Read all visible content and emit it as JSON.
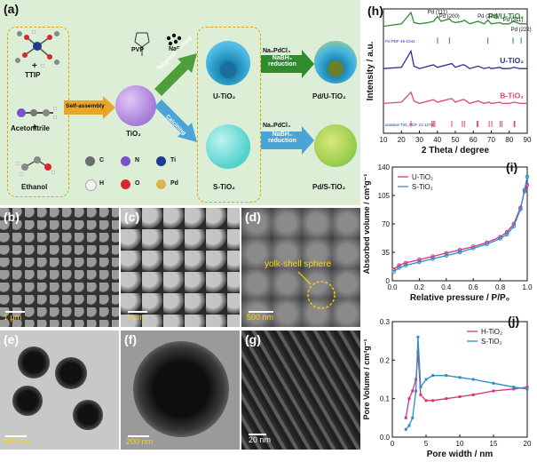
{
  "panels": {
    "a": "(a)",
    "b": "(b)",
    "c": "(c)",
    "d": "(d)",
    "e": "(e)",
    "f": "(f)",
    "g": "(g)",
    "h": "(h)",
    "i": "(i)",
    "j": "(j)"
  },
  "scheme": {
    "precursors": [
      "TTIP",
      "Acetonitrile",
      "Ethanol"
    ],
    "self_assembly": "Self-assembly",
    "tio2": "TiO₂",
    "pvp": "PVP",
    "naf": "NaF",
    "targeted_etching": "Targeted etching",
    "calcining": "Calcining",
    "u_tio2": "U-TiO₂",
    "s_tio2": "S-TiO₂",
    "na2pdcl4": "Na₂PdCl₄",
    "nabh4_reduction": [
      "NaBH₄",
      "reduction"
    ],
    "pd_u_tio2": "Pd/U-TiO₂",
    "pd_s_tio2": "Pd/S-TiO₂",
    "legend": [
      {
        "label": "C",
        "color": "#6e6e6e"
      },
      {
        "label": "N",
        "color": "#7a52c7"
      },
      {
        "label": "Ti",
        "color": "#1e3c8c"
      },
      {
        "label": "H",
        "color": "#f2f2f2"
      },
      {
        "label": "O",
        "color": "#d8282d"
      },
      {
        "label": "Pd",
        "color": "#d8b64a"
      }
    ]
  },
  "micrographs": {
    "b_scale": "1 μm",
    "c_scale": "1 μm",
    "d_scale": "500 nm",
    "d_annotation": "yolk-shell sphere",
    "e_scale": "500 nm",
    "f_scale": "200 nm",
    "g_scale": "20 nm"
  },
  "chart_data": [
    {
      "id": "h",
      "type": "line",
      "xlabel": "2 Theta / degree",
      "ylabel": "Intensity / a.u.",
      "xlim": [
        10,
        90
      ],
      "xticks": [
        10,
        20,
        30,
        40,
        50,
        60,
        70,
        80,
        90
      ],
      "series": [
        {
          "name": "Pd/U-TiO₂",
          "color": "#2e8b2e",
          "x": [
            10,
            20,
            25.3,
            27,
            30,
            35,
            37.8,
            40.1,
            42,
            46.7,
            48,
            50,
            54,
            55,
            58,
            62.7,
            66,
            68.1,
            70,
            75,
            76,
            80,
            82.1,
            86,
            90
          ],
          "y": [
            0.86,
            0.88,
            0.97,
            0.89,
            0.88,
            0.89,
            0.9,
            0.94,
            0.9,
            0.92,
            0.9,
            0.89,
            0.9,
            0.91,
            0.88,
            0.9,
            0.88,
            0.91,
            0.88,
            0.89,
            0.88,
            0.88,
            0.9,
            0.88,
            0.88
          ]
        },
        {
          "name": "U-TiO₂",
          "color": "#2b2f8f",
          "x": [
            10,
            20,
            25.3,
            27,
            30,
            37.8,
            40,
            48,
            50,
            54,
            55,
            58,
            62.7,
            66,
            68.8,
            70,
            75,
            76,
            80,
            82.7,
            86,
            90
          ],
          "y": [
            0.52,
            0.53,
            0.66,
            0.54,
            0.52,
            0.55,
            0.53,
            0.56,
            0.53,
            0.55,
            0.55,
            0.52,
            0.54,
            0.52,
            0.53,
            0.52,
            0.53,
            0.52,
            0.52,
            0.53,
            0.52,
            0.52
          ]
        },
        {
          "name": "B-TiO₂",
          "color": "#e0457b",
          "x": [
            10,
            20,
            25.3,
            27,
            30,
            37.8,
            40,
            48,
            50,
            54,
            55,
            58,
            62.7,
            66,
            68.8,
            70,
            75,
            76,
            80,
            82.7,
            86,
            90
          ],
          "y": [
            0.24,
            0.25,
            0.33,
            0.26,
            0.24,
            0.27,
            0.25,
            0.28,
            0.25,
            0.27,
            0.27,
            0.24,
            0.26,
            0.24,
            0.25,
            0.24,
            0.25,
            0.24,
            0.24,
            0.25,
            0.24,
            0.24
          ]
        }
      ],
      "reference_bars": [
        {
          "name": "Pd PDF 46-1043",
          "color": "#2e8b2e",
          "x": [
            40.1,
            46.7,
            68.1,
            82.1,
            86.6
          ]
        },
        {
          "name": "anatase TiO₂ PDF 21-1276",
          "color": "#e0457b",
          "x": [
            25.3,
            37.0,
            37.8,
            38.6,
            48.0,
            53.9,
            55.1,
            62.1,
            62.7,
            68.8,
            70.3,
            75.0,
            76.0,
            82.7,
            83.1
          ]
        }
      ],
      "annotations": [
        "Pd (111)",
        "Pd (200)",
        "Pd (220)",
        "Pd (311)",
        "Pd (222)"
      ]
    },
    {
      "id": "i",
      "type": "line",
      "xlabel": "Relative pressure / P/P₀",
      "ylabel": "Absorbed volume / cm³g⁻¹",
      "xlim": [
        0.0,
        1.0
      ],
      "ylim": [
        0,
        140
      ],
      "xticks": [
        0.0,
        0.2,
        0.4,
        0.6,
        0.8,
        1.0
      ],
      "yticks": [
        0,
        35,
        70,
        105,
        140
      ],
      "legend_position": "top-left",
      "series": [
        {
          "name": "U-TiO₂",
          "color": "#d9327d",
          "x": [
            0.01,
            0.05,
            0.1,
            0.2,
            0.3,
            0.4,
            0.5,
            0.6,
            0.7,
            0.8,
            0.85,
            0.9,
            0.95,
            0.98,
            1.0
          ],
          "y": [
            14,
            19,
            22,
            26,
            30,
            34,
            38,
            42,
            47,
            54,
            60,
            70,
            90,
            110,
            118
          ]
        },
        {
          "name": "S-TiO₂",
          "color": "#2b8fc7",
          "x": [
            0.01,
            0.05,
            0.1,
            0.2,
            0.3,
            0.4,
            0.5,
            0.6,
            0.7,
            0.8,
            0.85,
            0.9,
            0.95,
            0.98,
            1.0
          ],
          "y": [
            11,
            16,
            19,
            23,
            27,
            31,
            35,
            40,
            45,
            52,
            57,
            67,
            88,
            112,
            128
          ]
        }
      ]
    },
    {
      "id": "j",
      "type": "line",
      "xlabel": "Pore width / nm",
      "ylabel": "Pore Volume / cm³g⁻¹",
      "xlim": [
        0,
        20
      ],
      "ylim": [
        0.0,
        0.3
      ],
      "xticks": [
        0,
        5,
        10,
        15,
        20
      ],
      "yticks": [
        0.0,
        0.1,
        0.2,
        0.3
      ],
      "legend_position": "top-right",
      "series": [
        {
          "name": "H-TiO₂",
          "color": "#d9327d",
          "x": [
            2,
            2.5,
            3,
            3.5,
            3.8,
            4.2,
            5,
            6,
            8,
            10,
            12,
            15,
            18,
            20
          ],
          "y": [
            0.05,
            0.1,
            0.12,
            0.15,
            0.22,
            0.11,
            0.095,
            0.095,
            0.1,
            0.105,
            0.11,
            0.12,
            0.125,
            0.13
          ]
        },
        {
          "name": "S-TiO₂",
          "color": "#2b8fc7",
          "x": [
            2,
            2.5,
            3,
            3.5,
            3.8,
            4.2,
            5,
            6,
            8,
            10,
            12,
            15,
            18,
            20
          ],
          "y": [
            0.02,
            0.03,
            0.05,
            0.12,
            0.26,
            0.13,
            0.15,
            0.16,
            0.16,
            0.155,
            0.15,
            0.14,
            0.13,
            0.125
          ]
        }
      ]
    }
  ]
}
